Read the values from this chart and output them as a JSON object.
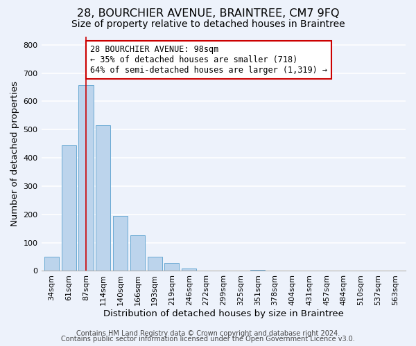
{
  "title": "28, BOURCHIER AVENUE, BRAINTREE, CM7 9FQ",
  "subtitle": "Size of property relative to detached houses in Braintree",
  "xlabel": "Distribution of detached houses by size in Braintree",
  "ylabel": "Number of detached properties",
  "bar_labels": [
    "34sqm",
    "61sqm",
    "87sqm",
    "114sqm",
    "140sqm",
    "166sqm",
    "193sqm",
    "219sqm",
    "246sqm",
    "272sqm",
    "299sqm",
    "325sqm",
    "351sqm",
    "378sqm",
    "404sqm",
    "431sqm",
    "457sqm",
    "484sqm",
    "510sqm",
    "537sqm",
    "563sqm"
  ],
  "bar_heights": [
    50,
    445,
    658,
    515,
    195,
    127,
    50,
    27,
    8,
    0,
    0,
    0,
    4,
    0,
    0,
    0,
    0,
    0,
    0,
    0,
    0
  ],
  "bar_color": "#bcd4ec",
  "bar_edge_color": "#6aaad4",
  "ylim": [
    0,
    830
  ],
  "yticks": [
    0,
    100,
    200,
    300,
    400,
    500,
    600,
    700,
    800
  ],
  "redline_index": 2,
  "annotation_line1": "28 BOURCHIER AVENUE: 98sqm",
  "annotation_line2": "← 35% of detached houses are smaller (718)",
  "annotation_line3": "64% of semi-detached houses are larger (1,319) →",
  "annotation_box_color": "#ffffff",
  "annotation_box_edge": "#cc0000",
  "redline_color": "#cc0000",
  "footer_line1": "Contains HM Land Registry data © Crown copyright and database right 2024.",
  "footer_line2": "Contains public sector information licensed under the Open Government Licence v3.0.",
  "background_color": "#edf2fb",
  "grid_color": "#ffffff",
  "title_fontsize": 11.5,
  "subtitle_fontsize": 10,
  "axis_label_fontsize": 9.5,
  "tick_fontsize": 8,
  "annotation_fontsize": 8.5,
  "footer_fontsize": 7
}
